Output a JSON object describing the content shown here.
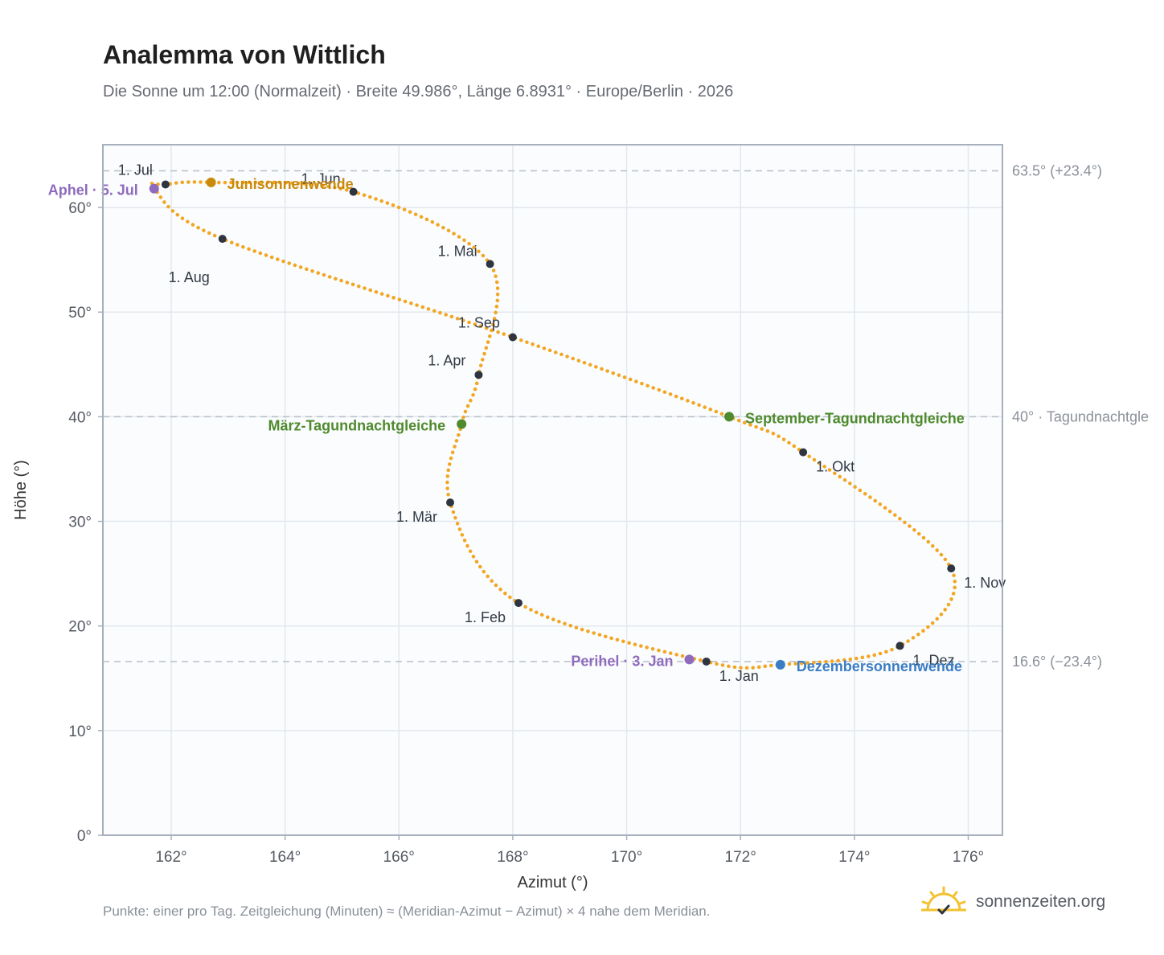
{
  "title": "Analemma von Wittlich",
  "subtitle": "Die Sonne um 12:00 (Normalzeit) · Breite 49.986°, Länge 6.8931° · Europe/Berlin · 2026",
  "footer_note": "Punkte: einer pro Tag. Zeitgleichung (Minuten) ≈ (Meridian-Azimut − Azimut) × 4 nahe dem Meridian.",
  "brand": {
    "text": "sonnenzeiten.org",
    "icon": "sun-check-logo-icon"
  },
  "colors": {
    "curve": "#f2a622",
    "month_dot": "#2f3540",
    "june": "#c98a0c",
    "equinox": "#4f8a2c",
    "december": "#3b7dc4",
    "apsis": "#8e6bbd",
    "reference_line": "#b8bec6",
    "plot_bg": "#fafcfe",
    "grid": "#e3e8ee",
    "frame": "#a7b0bc"
  },
  "chart_data": {
    "type": "scatter",
    "title": "Analemma von Wittlich",
    "xlabel": "Azimut (°)",
    "ylabel": "Höhe (°)",
    "xlim": [
      160.8,
      176.6
    ],
    "ylim": [
      0,
      66
    ],
    "x_ticks": [
      162,
      164,
      166,
      168,
      170,
      172,
      174,
      176
    ],
    "x_tick_labels": [
      "162°",
      "164°",
      "166°",
      "168°",
      "170°",
      "172°",
      "174°",
      "176°"
    ],
    "y_ticks": [
      0,
      10,
      20,
      30,
      40,
      50,
      60
    ],
    "y_tick_labels": [
      "0°",
      "10°",
      "20°",
      "30°",
      "40°",
      "50°",
      "60°"
    ],
    "grid": true,
    "reference_lines": [
      {
        "y": 63.5,
        "label": "63.5° (+23.4°)"
      },
      {
        "y": 40.0,
        "label": "40° · Tagundnachtgle"
      },
      {
        "y": 16.6,
        "label": "16.6° (−23.4°)"
      }
    ],
    "months": [
      {
        "label": "1. Jan",
        "az": 171.4,
        "alt": 16.6
      },
      {
        "label": "1. Feb",
        "az": 168.1,
        "alt": 22.2
      },
      {
        "label": "1. Mär",
        "az": 166.9,
        "alt": 31.8
      },
      {
        "label": "1. Apr",
        "az": 167.4,
        "alt": 44.0
      },
      {
        "label": "1. Mai",
        "az": 167.6,
        "alt": 54.6
      },
      {
        "label": "1. Jun",
        "az": 165.2,
        "alt": 61.5
      },
      {
        "label": "1. Jul",
        "az": 161.9,
        "alt": 62.2
      },
      {
        "label": "1. Aug",
        "az": 162.9,
        "alt": 57.0
      },
      {
        "label": "1. Sep",
        "az": 168.0,
        "alt": 47.6
      },
      {
        "label": "1. Okt",
        "az": 173.1,
        "alt": 36.6
      },
      {
        "label": "1. Nov",
        "az": 175.7,
        "alt": 25.5
      },
      {
        "label": "1. Dez",
        "az": 174.8,
        "alt": 18.1
      }
    ],
    "events": [
      {
        "label": "Junisonnenwende",
        "az": 162.7,
        "alt": 62.4,
        "color_key": "june"
      },
      {
        "label": "Aphel · 5. Jul",
        "az": 161.7,
        "alt": 61.8,
        "color_key": "apsis"
      },
      {
        "label": "März-Tagundnachtgleiche",
        "az": 167.1,
        "alt": 39.3,
        "color_key": "equinox"
      },
      {
        "label": "September-Tagundnachtgleiche",
        "az": 171.8,
        "alt": 40.0,
        "color_key": "equinox"
      },
      {
        "label": "Perihel · 3. Jan",
        "az": 171.1,
        "alt": 16.8,
        "color_key": "apsis"
      },
      {
        "label": "Dezembersonnenwende",
        "az": 172.7,
        "alt": 16.3,
        "color_key": "december"
      }
    ]
  }
}
